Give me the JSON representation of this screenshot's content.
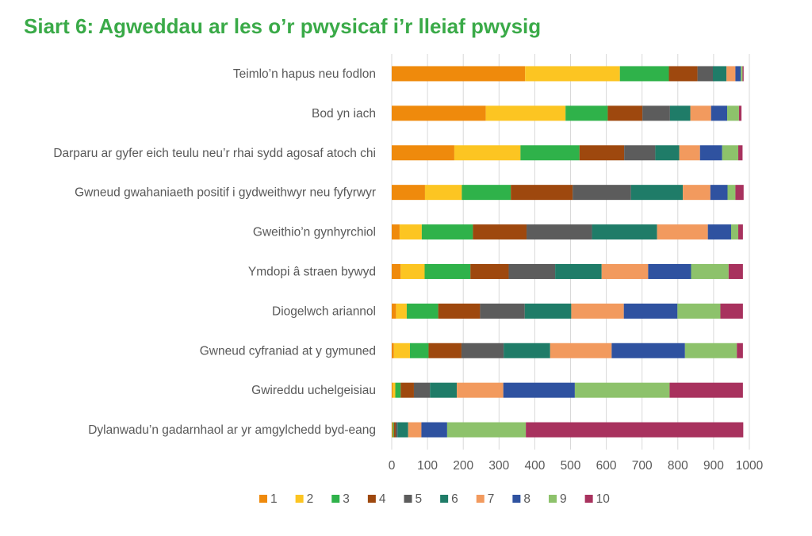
{
  "chart_data": {
    "type": "bar",
    "orientation": "horizontal",
    "stacked": true,
    "title": "Siart 6: Agweddau ar les o’r pwysicaf i’r lleiaf pwysig",
    "categories": [
      "Teimlo’n hapus neu fodlon",
      "Bod yn iach",
      "Darparu ar gyfer eich teulu neu’r rhai sydd agosaf atoch chi",
      "Gwneud gwahaniaeth positif i gydweithwyr neu fyfyrwyr",
      "Gweithio’n gynhyrchiol",
      "Ymdopi â straen bywyd",
      "Diogelwch ariannol",
      "Gwneud cyfraniad at y gymuned",
      "Gwireddu uchelgeisiau",
      "Dylanwadu’n gadarnhaol ar yr amgylchedd byd-eang"
    ],
    "series": [
      {
        "name": "1",
        "color": "#ef8a0c",
        "values": [
          373,
          263,
          175,
          93,
          22,
          25,
          12,
          6,
          3,
          3
        ]
      },
      {
        "name": "2",
        "color": "#fcc522",
        "values": [
          265,
          223,
          185,
          103,
          62,
          67,
          30,
          45,
          7,
          0
        ]
      },
      {
        "name": "3",
        "color": "#2fb24a",
        "values": [
          137,
          118,
          165,
          137,
          143,
          128,
          88,
          52,
          15,
          3
        ]
      },
      {
        "name": "4",
        "color": "#9e480e",
        "values": [
          80,
          97,
          125,
          173,
          150,
          107,
          117,
          92,
          37,
          5
        ]
      },
      {
        "name": "5",
        "color": "#5c5c5c",
        "values": [
          43,
          77,
          87,
          163,
          183,
          130,
          125,
          118,
          45,
          5
        ]
      },
      {
        "name": "6",
        "color": "#1f7c68",
        "values": [
          38,
          57,
          67,
          145,
          182,
          130,
          130,
          130,
          75,
          30
        ]
      },
      {
        "name": "7",
        "color": "#f29a5e",
        "values": [
          25,
          58,
          58,
          77,
          142,
          130,
          147,
          172,
          130,
          37
        ]
      },
      {
        "name": "8",
        "color": "#2f52a0",
        "values": [
          15,
          45,
          62,
          48,
          65,
          120,
          150,
          205,
          200,
          72
        ]
      },
      {
        "name": "9",
        "color": "#8dc26b",
        "values": [
          5,
          33,
          45,
          22,
          20,
          105,
          120,
          145,
          265,
          220
        ]
      },
      {
        "name": "10",
        "color": "#a8325e",
        "values": [
          3,
          7,
          12,
          23,
          13,
          40,
          63,
          17,
          205,
          608
        ]
      }
    ],
    "xlim": [
      0,
      1000
    ],
    "xticks": [
      0,
      100,
      200,
      300,
      400,
      500,
      600,
      700,
      800,
      900,
      1000
    ],
    "grid": true,
    "legend": "bottom"
  }
}
